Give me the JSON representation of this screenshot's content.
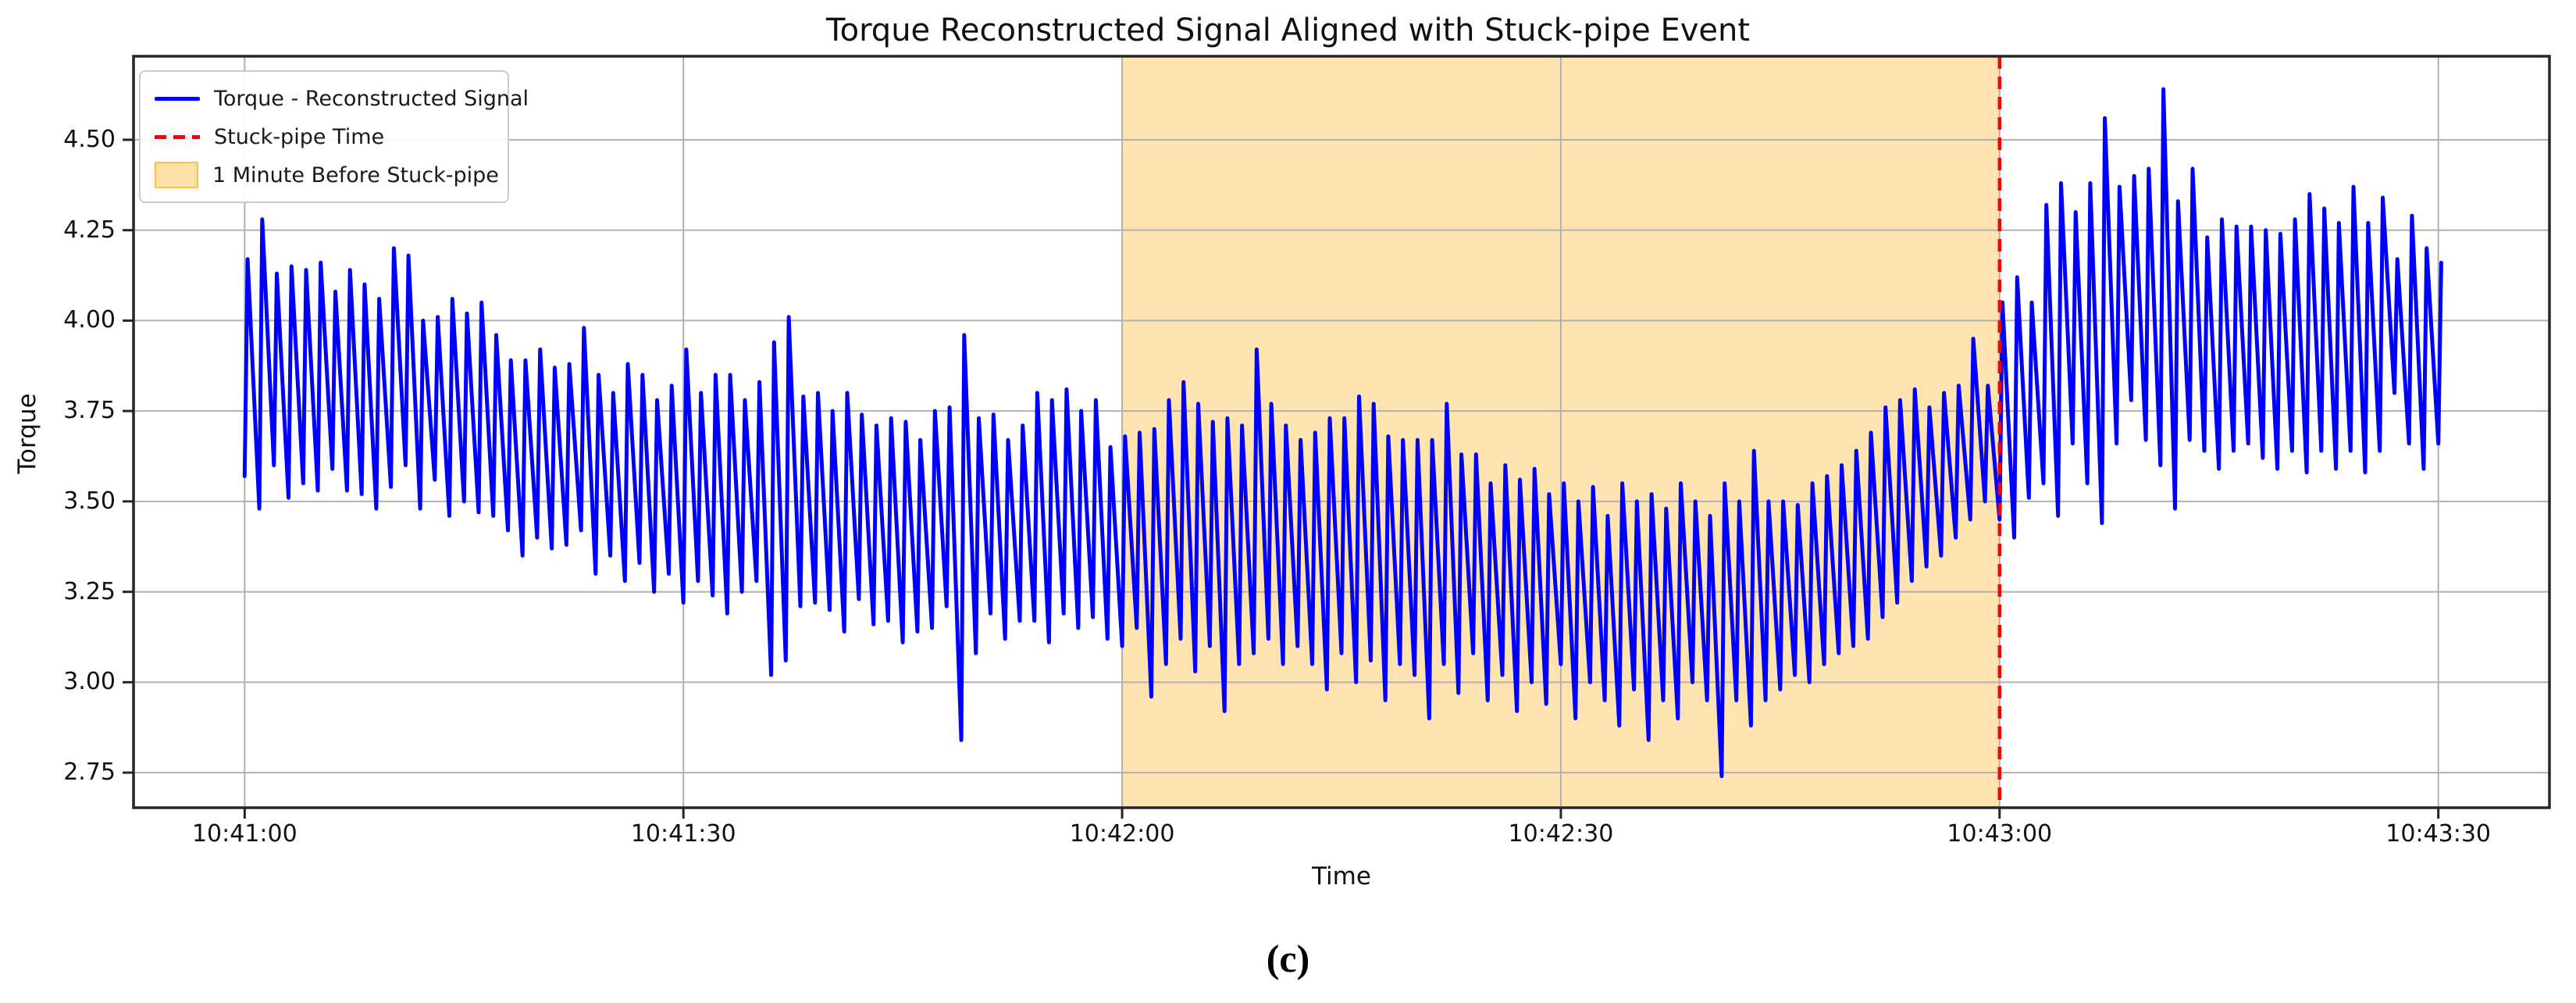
{
  "caption": "(c)",
  "legend": {
    "items": [
      {
        "label": "Torque - Reconstructed Signal",
        "swatch": "line-solid-icon",
        "color": "#0000ff"
      },
      {
        "label": "Stuck-pipe Time",
        "swatch": "line-dashed-icon",
        "color": "#ff0000"
      },
      {
        "label": "1 Minute Before Stuck-pipe",
        "swatch": "patch-icon",
        "color": "#ffa500"
      }
    ]
  },
  "colors": {
    "series": "#0000ff",
    "event_line": "#ff0000",
    "shaded_fill": "rgba(255,165,0,0.3)",
    "grid": "#b0b0b0",
    "spine": "#262626",
    "text": "#1a1a1a",
    "background": "#ffffff"
  },
  "chart_data": {
    "type": "line",
    "title": "Torque Reconstructed Signal Aligned with Stuck-pipe Event",
    "xlabel": "Time",
    "ylabel": "Torque",
    "legend_position": "upper-left",
    "grid": true,
    "x_tick_labels": [
      "10:41:00",
      "10:41:30",
      "10:42:00",
      "10:42:30",
      "10:43:00",
      "10:43:30"
    ],
    "x_tick_seconds": [
      0,
      30,
      60,
      90,
      120,
      150
    ],
    "y_ticks": [
      2.75,
      3.0,
      3.25,
      3.5,
      3.75,
      4.0,
      4.25,
      4.5
    ],
    "xlim_seconds": [
      -7.6,
      157.6
    ],
    "ylim": [
      2.653,
      4.731
    ],
    "time_origin": "10:41:00",
    "event": {
      "label": "Stuck-pipe Time",
      "time": "10:43:00",
      "time_s": 120,
      "style": "dashed"
    },
    "shaded_region": {
      "label": "1 Minute Before Stuck-pipe",
      "from": "10:42:00",
      "to": "10:43:00",
      "from_s": 60,
      "to_s": 120
    },
    "series": [
      {
        "name": "Torque - Reconstructed Signal",
        "x_unit": "seconds after 10:41:00",
        "points": [
          [
            0,
            3.57
          ],
          [
            0.2,
            4.17
          ],
          [
            1,
            3.48
          ],
          [
            1.2,
            4.28
          ],
          [
            2,
            3.6
          ],
          [
            2.2,
            4.13
          ],
          [
            3,
            3.51
          ],
          [
            3.2,
            4.15
          ],
          [
            4,
            3.55
          ],
          [
            4.2,
            4.14
          ],
          [
            5,
            3.53
          ],
          [
            5.2,
            4.16
          ],
          [
            6,
            3.59
          ],
          [
            6.2,
            4.08
          ],
          [
            7,
            3.53
          ],
          [
            7.2,
            4.14
          ],
          [
            8,
            3.52
          ],
          [
            8.2,
            4.1
          ],
          [
            9,
            3.48
          ],
          [
            9.2,
            4.06
          ],
          [
            10,
            3.54
          ],
          [
            10.2,
            4.2
          ],
          [
            11,
            3.6
          ],
          [
            11.2,
            4.18
          ],
          [
            12,
            3.48
          ],
          [
            12.2,
            4.0
          ],
          [
            13,
            3.56
          ],
          [
            13.2,
            4.01
          ],
          [
            14,
            3.46
          ],
          [
            14.2,
            4.06
          ],
          [
            15,
            3.5
          ],
          [
            15.2,
            4.02
          ],
          [
            16,
            3.47
          ],
          [
            16.2,
            4.05
          ],
          [
            17,
            3.46
          ],
          [
            17.2,
            3.96
          ],
          [
            18,
            3.42
          ],
          [
            18.2,
            3.89
          ],
          [
            19,
            3.35
          ],
          [
            19.2,
            3.89
          ],
          [
            20,
            3.4
          ],
          [
            20.2,
            3.92
          ],
          [
            21,
            3.37
          ],
          [
            21.2,
            3.87
          ],
          [
            22,
            3.38
          ],
          [
            22.2,
            3.88
          ],
          [
            23,
            3.42
          ],
          [
            23.2,
            3.98
          ],
          [
            24,
            3.3
          ],
          [
            24.2,
            3.85
          ],
          [
            25,
            3.35
          ],
          [
            25.2,
            3.8
          ],
          [
            26,
            3.28
          ],
          [
            26.2,
            3.88
          ],
          [
            27,
            3.33
          ],
          [
            27.2,
            3.85
          ],
          [
            28,
            3.25
          ],
          [
            28.2,
            3.78
          ],
          [
            29,
            3.3
          ],
          [
            29.2,
            3.82
          ],
          [
            30,
            3.22
          ],
          [
            30.2,
            3.92
          ],
          [
            31,
            3.28
          ],
          [
            31.2,
            3.8
          ],
          [
            32,
            3.24
          ],
          [
            32.2,
            3.85
          ],
          [
            33,
            3.19
          ],
          [
            33.2,
            3.85
          ],
          [
            34,
            3.25
          ],
          [
            34.2,
            3.78
          ],
          [
            35,
            3.28
          ],
          [
            35.2,
            3.83
          ],
          [
            36,
            3.02
          ],
          [
            36.2,
            3.94
          ],
          [
            37,
            3.06
          ],
          [
            37.2,
            4.01
          ],
          [
            38,
            3.21
          ],
          [
            38.2,
            3.79
          ],
          [
            39,
            3.22
          ],
          [
            39.2,
            3.8
          ],
          [
            40,
            3.2
          ],
          [
            40.2,
            3.75
          ],
          [
            41,
            3.14
          ],
          [
            41.2,
            3.8
          ],
          [
            42,
            3.23
          ],
          [
            42.2,
            3.74
          ],
          [
            43,
            3.16
          ],
          [
            43.2,
            3.71
          ],
          [
            44,
            3.17
          ],
          [
            44.2,
            3.73
          ],
          [
            45,
            3.11
          ],
          [
            45.2,
            3.72
          ],
          [
            46,
            3.14
          ],
          [
            46.2,
            3.67
          ],
          [
            47,
            3.15
          ],
          [
            47.2,
            3.75
          ],
          [
            48,
            3.21
          ],
          [
            48.2,
            3.76
          ],
          [
            49,
            2.84
          ],
          [
            49.2,
            3.96
          ],
          [
            50,
            3.08
          ],
          [
            50.2,
            3.73
          ],
          [
            51,
            3.19
          ],
          [
            51.2,
            3.74
          ],
          [
            52,
            3.12
          ],
          [
            52.2,
            3.67
          ],
          [
            53,
            3.17
          ],
          [
            53.2,
            3.71
          ],
          [
            54,
            3.17
          ],
          [
            54.2,
            3.8
          ],
          [
            55,
            3.11
          ],
          [
            55.2,
            3.78
          ],
          [
            56,
            3.19
          ],
          [
            56.2,
            3.81
          ],
          [
            57,
            3.15
          ],
          [
            57.2,
            3.75
          ],
          [
            58,
            3.18
          ],
          [
            58.2,
            3.78
          ],
          [
            59,
            3.12
          ],
          [
            59.2,
            3.65
          ],
          [
            60,
            3.1
          ],
          [
            60.2,
            3.68
          ],
          [
            61,
            3.15
          ],
          [
            61.2,
            3.69
          ],
          [
            62,
            2.96
          ],
          [
            62.2,
            3.7
          ],
          [
            63,
            3.05
          ],
          [
            63.2,
            3.78
          ],
          [
            64,
            3.12
          ],
          [
            64.2,
            3.83
          ],
          [
            65,
            3.03
          ],
          [
            65.2,
            3.77
          ],
          [
            66,
            3.1
          ],
          [
            66.2,
            3.72
          ],
          [
            67,
            2.92
          ],
          [
            67.2,
            3.73
          ],
          [
            68,
            3.05
          ],
          [
            68.2,
            3.71
          ],
          [
            69,
            3.08
          ],
          [
            69.2,
            3.92
          ],
          [
            70,
            3.12
          ],
          [
            70.2,
            3.77
          ],
          [
            71,
            3.05
          ],
          [
            71.2,
            3.71
          ],
          [
            72,
            3.1
          ],
          [
            72.2,
            3.67
          ],
          [
            73,
            3.05
          ],
          [
            73.2,
            3.69
          ],
          [
            74,
            2.98
          ],
          [
            74.2,
            3.73
          ],
          [
            75,
            3.08
          ],
          [
            75.2,
            3.73
          ],
          [
            76,
            3.0
          ],
          [
            76.2,
            3.79
          ],
          [
            77,
            3.06
          ],
          [
            77.2,
            3.77
          ],
          [
            78,
            2.95
          ],
          [
            78.2,
            3.68
          ],
          [
            79,
            3.05
          ],
          [
            79.2,
            3.67
          ],
          [
            80,
            3.02
          ],
          [
            80.2,
            3.67
          ],
          [
            81,
            2.9
          ],
          [
            81.2,
            3.67
          ],
          [
            82,
            3.05
          ],
          [
            82.2,
            3.77
          ],
          [
            83,
            2.97
          ],
          [
            83.2,
            3.63
          ],
          [
            84,
            3.08
          ],
          [
            84.2,
            3.63
          ],
          [
            85,
            2.95
          ],
          [
            85.2,
            3.55
          ],
          [
            86,
            3.02
          ],
          [
            86.2,
            3.6
          ],
          [
            87,
            2.92
          ],
          [
            87.2,
            3.56
          ],
          [
            88,
            3.0
          ],
          [
            88.2,
            3.59
          ],
          [
            89,
            2.94
          ],
          [
            89.2,
            3.52
          ],
          [
            90,
            3.05
          ],
          [
            90.2,
            3.55
          ],
          [
            91,
            2.9
          ],
          [
            91.2,
            3.5
          ],
          [
            92,
            3.0
          ],
          [
            92.2,
            3.54
          ],
          [
            93,
            2.95
          ],
          [
            93.2,
            3.46
          ],
          [
            94,
            2.88
          ],
          [
            94.2,
            3.55
          ],
          [
            95,
            2.98
          ],
          [
            95.2,
            3.5
          ],
          [
            96,
            2.84
          ],
          [
            96.2,
            3.52
          ],
          [
            97,
            2.95
          ],
          [
            97.2,
            3.48
          ],
          [
            98,
            2.9
          ],
          [
            98.2,
            3.55
          ],
          [
            99,
            3.0
          ],
          [
            99.2,
            3.5
          ],
          [
            100,
            2.95
          ],
          [
            100.2,
            3.46
          ],
          [
            101,
            2.74
          ],
          [
            101.2,
            3.55
          ],
          [
            102,
            2.95
          ],
          [
            102.2,
            3.5
          ],
          [
            103,
            2.88
          ],
          [
            103.2,
            3.64
          ],
          [
            104,
            2.95
          ],
          [
            104.2,
            3.5
          ],
          [
            105,
            2.98
          ],
          [
            105.2,
            3.5
          ],
          [
            106,
            3.02
          ],
          [
            106.2,
            3.49
          ],
          [
            107,
            3.0
          ],
          [
            107.2,
            3.55
          ],
          [
            108,
            3.05
          ],
          [
            108.2,
            3.57
          ],
          [
            109,
            3.08
          ],
          [
            109.2,
            3.6
          ],
          [
            110,
            3.1
          ],
          [
            110.2,
            3.64
          ],
          [
            111,
            3.12
          ],
          [
            111.2,
            3.69
          ],
          [
            112,
            3.18
          ],
          [
            112.2,
            3.76
          ],
          [
            113,
            3.22
          ],
          [
            113.2,
            3.78
          ],
          [
            114,
            3.28
          ],
          [
            114.2,
            3.81
          ],
          [
            115,
            3.32
          ],
          [
            115.2,
            3.76
          ],
          [
            116,
            3.35
          ],
          [
            116.2,
            3.8
          ],
          [
            117,
            3.4
          ],
          [
            117.2,
            3.82
          ],
          [
            118,
            3.45
          ],
          [
            118.2,
            3.95
          ],
          [
            119,
            3.5
          ],
          [
            119.2,
            3.82
          ],
          [
            120,
            3.45
          ],
          [
            120.2,
            4.05
          ],
          [
            121,
            3.4
          ],
          [
            121.2,
            4.12
          ],
          [
            122,
            3.51
          ],
          [
            122.2,
            4.05
          ],
          [
            123,
            3.55
          ],
          [
            123.2,
            4.32
          ],
          [
            124,
            3.46
          ],
          [
            124.2,
            4.38
          ],
          [
            125,
            3.66
          ],
          [
            125.2,
            4.3
          ],
          [
            126,
            3.55
          ],
          [
            126.2,
            4.38
          ],
          [
            127,
            3.44
          ],
          [
            127.2,
            4.56
          ],
          [
            128,
            3.66
          ],
          [
            128.2,
            4.37
          ],
          [
            129,
            3.78
          ],
          [
            129.2,
            4.4
          ],
          [
            130,
            3.67
          ],
          [
            130.2,
            4.42
          ],
          [
            131,
            3.6
          ],
          [
            131.2,
            4.64
          ],
          [
            132,
            3.48
          ],
          [
            132.2,
            4.33
          ],
          [
            133,
            3.67
          ],
          [
            133.2,
            4.42
          ],
          [
            134,
            3.64
          ],
          [
            134.2,
            4.23
          ],
          [
            135,
            3.59
          ],
          [
            135.2,
            4.28
          ],
          [
            136,
            3.64
          ],
          [
            136.2,
            4.26
          ],
          [
            137,
            3.66
          ],
          [
            137.2,
            4.26
          ],
          [
            138,
            3.62
          ],
          [
            138.2,
            4.25
          ],
          [
            139,
            3.59
          ],
          [
            139.2,
            4.24
          ],
          [
            140,
            3.64
          ],
          [
            140.2,
            4.28
          ],
          [
            141,
            3.58
          ],
          [
            141.2,
            4.35
          ],
          [
            142,
            3.64
          ],
          [
            142.2,
            4.31
          ],
          [
            143,
            3.59
          ],
          [
            143.2,
            4.27
          ],
          [
            144,
            3.64
          ],
          [
            144.2,
            4.37
          ],
          [
            145,
            3.58
          ],
          [
            145.2,
            4.27
          ],
          [
            146,
            3.64
          ],
          [
            146.2,
            4.34
          ],
          [
            147,
            3.8
          ],
          [
            147.2,
            4.17
          ],
          [
            148,
            3.66
          ],
          [
            148.2,
            4.29
          ],
          [
            149,
            3.59
          ],
          [
            149.2,
            4.2
          ],
          [
            150,
            3.66
          ],
          [
            150.2,
            4.16
          ]
        ]
      }
    ]
  }
}
